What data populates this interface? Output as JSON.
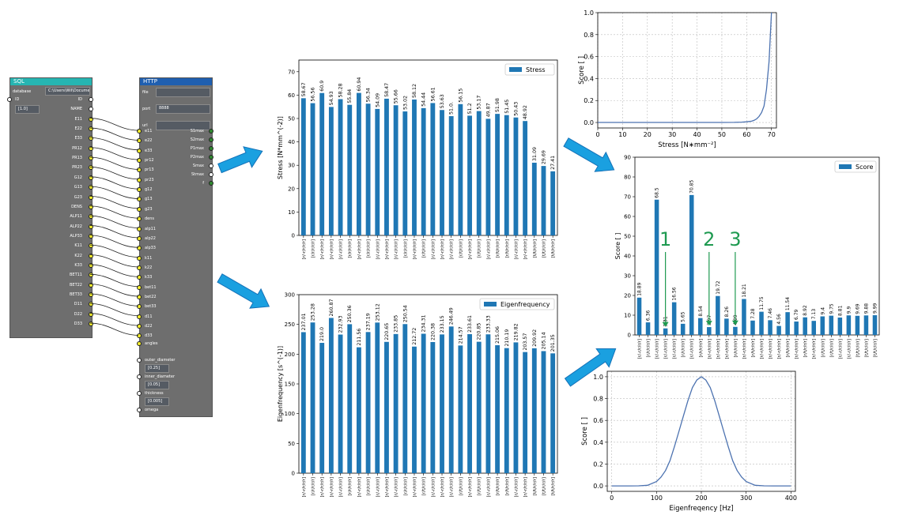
{
  "sql_node": {
    "title": "SQL",
    "database_label": "database",
    "database_value": "C:\\Users\\Wil\\Documents",
    "id_label": "ID",
    "id_value": "[1.0]",
    "out_ports": [
      "ID",
      "NAME",
      "E11",
      "E22",
      "E33",
      "PR12",
      "PR13",
      "PR23",
      "G12",
      "G13",
      "G23",
      "DENS",
      "ALP11",
      "ALP22",
      "ALP33",
      "K11",
      "K22",
      "K33",
      "BET11",
      "BET22",
      "BET33",
      "D11",
      "D22",
      "D33"
    ]
  },
  "http_node": {
    "title": "HTTP",
    "file_label": "file",
    "file_value": "",
    "port_label": "port",
    "port_value": "8888",
    "url_label": "url",
    "url_value": "",
    "in_ports": [
      "e11",
      "e22",
      "e33",
      "pr12",
      "pr13",
      "pr23",
      "g12",
      "g13",
      "g23",
      "dens",
      "alp11",
      "alp22",
      "alp33",
      "k11",
      "k22",
      "k33",
      "bet11",
      "bet22",
      "bet33",
      "d11",
      "d22",
      "d33"
    ],
    "out_ports": [
      {
        "name": "S1max",
        "color": "green"
      },
      {
        "name": "S2max",
        "color": "green"
      },
      {
        "name": "P1max",
        "color": "green"
      },
      {
        "name": "P2max",
        "color": "green"
      },
      {
        "name": "Smax",
        "color": "white"
      },
      {
        "name": "Stmax",
        "color": "white"
      },
      {
        "name": "f",
        "color": "green"
      }
    ],
    "extra": [
      {
        "label": "angles",
        "value": null
      },
      {
        "label": "outer_diameter",
        "value": "[0.25]"
      },
      {
        "label": "inner_diameter",
        "value": "[0.05]"
      },
      {
        "label": "thickness",
        "value": "[0.005]"
      },
      {
        "label": "omega",
        "value": null
      }
    ]
  },
  "colors": {
    "node_head_sql": "#26b5b2",
    "node_head_http": "#1f5fb0",
    "node_body": "#6e6e6e",
    "bar": "#1f77b4",
    "line": "#4c72b0",
    "arrow": "#1aa0e0",
    "arrow_edge": "#1572b8",
    "annotation": "#1e9a50"
  },
  "chart_data": [
    {
      "id": "stress",
      "type": "bar",
      "ylabel": "Stress [N*mm^(-2)]",
      "legend": "Stress",
      "legend_position": "top-right",
      "ylim": [
        0,
        75
      ],
      "yticks": [
        0,
        10,
        20,
        30,
        40,
        50,
        60,
        70
      ],
      "categories": [
        "[r/-r/r/r/r]",
        "[r/r/r/r/r]",
        "[r/-r/r/r/r]",
        "[r/-r/r/r/r]",
        "[r/-r/r/r/r]",
        "[r/r/r/r/r]",
        "[r/-r/r/r/r]",
        "[r/r/r/r/r]",
        "[r/-r/r/r/r]",
        "[r/-r/r/r/r]",
        "[r/-r/r/r/r]",
        "[r/r/r/r/r]",
        "[r/-r/r/r/r]",
        "[r/t/r/r/r]",
        "[r/-r/r/r/r]",
        "[r/-r/r/r/r]",
        "[r/-r/r/r/r]",
        "[r/t/r/r/r]",
        "[r/-r/r/r/r]",
        "[r/t/r/r/r]",
        "[r/-r/r/r/r]",
        "[r/t/r/r/r]",
        "[r/t/r/r/r]",
        "[r/-r/r/r/r]",
        "[r/-r/r/r/r]",
        "[t/t/r/r/r]",
        "[t/t/r/r/r]",
        "[t/t/r/r/r]"
      ],
      "values": [
        58.67,
        56.56,
        60.9,
        54.93,
        58.28,
        55.84,
        60.94,
        56.34,
        54.09,
        58.47,
        55.66,
        53.02,
        58.12,
        54.44,
        56.61,
        53.63,
        51.0,
        56.15,
        51.2,
        53.17,
        49.87,
        51.98,
        51.45,
        50.43,
        48.92,
        31.09,
        29.69,
        27.41
      ],
      "labels": [
        "58.67",
        "56.56",
        "60.9",
        "54.93",
        "58.28",
        "55.84",
        "60.94",
        "56.34",
        "54.09",
        "58.47",
        "55.66",
        "53.02",
        "58.12",
        "54.44",
        "56.61",
        "53.63",
        "51.0.",
        "56.15",
        "51.2",
        "53.17",
        "49.87",
        "51.98",
        "51.45",
        "50.43",
        "48.92",
        "31.09",
        "29.69",
        "27.41"
      ]
    },
    {
      "id": "eigen",
      "type": "bar",
      "ylabel": "Eigenfrequency [s^(-1)]",
      "legend": "Eigenfrequency",
      "legend_position": "top-right",
      "ylim": [
        0,
        300
      ],
      "yticks": [
        0,
        50,
        100,
        150,
        200,
        250,
        300
      ],
      "categories": [
        "[r/-r/r/r/r]",
        "[r/r/r/r/r]",
        "[r/-r/r/r/r]",
        "[r/-r/r/r/r]",
        "[r/-r/r/r/r]",
        "[r/r/r/r/r]",
        "[r/-r/r/r/r]",
        "[r/r/r/r/r]",
        "[r/-r/r/r/r]",
        "[r/-r/r/r/r]",
        "[r/-r/r/r/r]",
        "[r/r/r/r/r]",
        "[r/-r/r/r/r]",
        "[r/t/r/r/r]",
        "[r/-r/r/r/r]",
        "[r/-r/r/r/r]",
        "[r/-r/r/r/r]",
        "[r/t/r/r/r]",
        "[r/-r/r/r/r]",
        "[r/t/r/r/r]",
        "[r/-r/r/r/r]",
        "[r/t/r/r/r]",
        "[r/t/r/r/r]",
        "[r/-r/r/r/r]",
        "[r/-r/r/r/r]",
        "[t/t/r/r/r]",
        "[t/t/r/r/r]",
        "[t/t/r/r/r]"
      ],
      "values": [
        237.01,
        253.28,
        219.0,
        260.87,
        232.93,
        250.36,
        211.56,
        237.19,
        253.12,
        220.65,
        233.85,
        250.54,
        212.72,
        234.31,
        220.38,
        233.15,
        246.49,
        214.57,
        233.61,
        220.85,
        233.33,
        215.06,
        210.19,
        219.82,
        203.57,
        209.92,
        205.14,
        201.35
      ],
      "labels": [
        "237.01",
        "253.28",
        "219.0",
        "260.87",
        "232.93",
        "250.36",
        "211.56",
        "237.19",
        "253.12",
        "220.65",
        "233.85",
        "250.54",
        "212.72",
        "234.31",
        "220.38",
        "233.15",
        "246.49",
        "214.57",
        "233.61",
        "220.85",
        "233.33",
        "215.06",
        "210.19",
        "219.82",
        "203.57",
        "209.92",
        "205.14",
        "201.35"
      ]
    },
    {
      "id": "score",
      "type": "bar",
      "ylabel": "Score [ ]",
      "legend": "Score",
      "legend_position": "top-right",
      "ylim": [
        0,
        90
      ],
      "yticks": [
        0,
        10,
        20,
        30,
        40,
        50,
        60,
        70,
        80,
        90
      ],
      "categories": [
        "[r/-r/r/r/r]",
        "[r/r/r/r/r]",
        "[r/-r/r/r/r]",
        "[r/-r/r/r/r]",
        "[r/-r/r/r/r]",
        "[r/r/r/r/r]",
        "[r/-r/r/r/r]",
        "[r/r/r/r/r]",
        "[r/-r/r/r/r]",
        "[r/-r/r/r/r]",
        "[r/-r/r/r/r]",
        "[r/r/r/r/r]",
        "[r/-r/r/r/r]",
        "[r/t/r/r/r]",
        "[r/-r/r/r/r]",
        "[r/-r/r/r/r]",
        "[r/-r/r/r/r]",
        "[r/t/r/r/r]",
        "[r/-r/r/r/r]",
        "[r/t/r/r/r]",
        "[r/-r/r/r/r]",
        "[r/t/r/r/r]",
        "[r/t/r/r/r]",
        "[r/-r/r/r/r]",
        "[r/-r/r/r/r]",
        "[t/t/r/r/r]",
        "[t/t/r/r/r]",
        "[t/t/r/r/r]"
      ],
      "values": [
        18.89,
        6.36,
        68.5,
        3.31,
        16.56,
        5.65,
        70.85,
        8.54,
        3.97,
        19.72,
        8.26,
        4.09,
        18.21,
        7.28,
        11.75,
        7.46,
        4.56,
        11.54,
        6.79,
        8.92,
        7.13,
        9.4,
        9.75,
        8.81,
        9.9,
        9.69,
        9.88,
        9.99
      ],
      "labels": [
        "18.89",
        "6.36",
        "68.5",
        "3.31",
        "16.56",
        "5.65",
        "70.85",
        "8.54",
        "3.97",
        "19.72",
        "8.26",
        "4.09",
        "18.21",
        "7.28",
        "11.75",
        "7.46",
        "4.56",
        "11.54",
        "6.79",
        "8.92",
        "7.13",
        "9.4",
        "9.75",
        "8.81",
        "9.9",
        "9.69",
        "9.88",
        "9.99"
      ],
      "annotations": [
        {
          "text": "1",
          "index": 3
        },
        {
          "text": "2",
          "index": 8
        },
        {
          "text": "3",
          "index": 11
        }
      ]
    },
    {
      "id": "stress_score",
      "type": "line",
      "xlabel": "Stress [N∗mm⁻²]",
      "ylabel": "Score [ ]",
      "xlim": [
        0,
        72
      ],
      "ylim": [
        -0.05,
        1.0
      ],
      "xticks": [
        0,
        10,
        20,
        30,
        40,
        50,
        60,
        70
      ],
      "yticks": [
        0.0,
        0.2,
        0.4,
        0.6,
        0.8,
        1.0
      ],
      "ytick_labels": [
        "0.0",
        "0.2",
        "0.4",
        "0.6",
        "0.8",
        "1.0"
      ],
      "grid": true,
      "x": [
        0,
        50,
        55,
        58,
        60,
        62,
        63,
        64,
        65,
        66,
        67,
        68,
        69,
        70
      ],
      "y": [
        0,
        0,
        0.001,
        0.003,
        0.006,
        0.012,
        0.02,
        0.033,
        0.055,
        0.09,
        0.15,
        0.3,
        0.55,
        1.0
      ]
    },
    {
      "id": "eigen_score",
      "type": "line",
      "xlabel": "Eigenfreqency [Hz]",
      "ylabel": "Score [ ]",
      "xlim": [
        -10,
        410
      ],
      "ylim": [
        -0.05,
        1.05
      ],
      "xticks": [
        0,
        100,
        200,
        300,
        400
      ],
      "yticks": [
        0.0,
        0.2,
        0.4,
        0.6,
        0.8,
        1.0
      ],
      "ytick_labels": [
        "0.0",
        "0.2",
        "0.4",
        "0.6",
        "0.8",
        "1.0"
      ],
      "grid": true,
      "x": [
        0,
        20,
        40,
        60,
        80,
        100,
        110,
        120,
        130,
        140,
        150,
        160,
        170,
        180,
        190,
        200,
        210,
        220,
        230,
        240,
        250,
        260,
        270,
        280,
        290,
        300,
        320,
        340,
        360,
        380,
        400
      ],
      "y": [
        0,
        0,
        0,
        0.001,
        0.006,
        0.04,
        0.08,
        0.14,
        0.23,
        0.36,
        0.5,
        0.64,
        0.78,
        0.9,
        0.97,
        1.0,
        0.97,
        0.9,
        0.78,
        0.64,
        0.5,
        0.36,
        0.23,
        0.14,
        0.08,
        0.04,
        0.006,
        0.001,
        0,
        0,
        0
      ]
    }
  ]
}
